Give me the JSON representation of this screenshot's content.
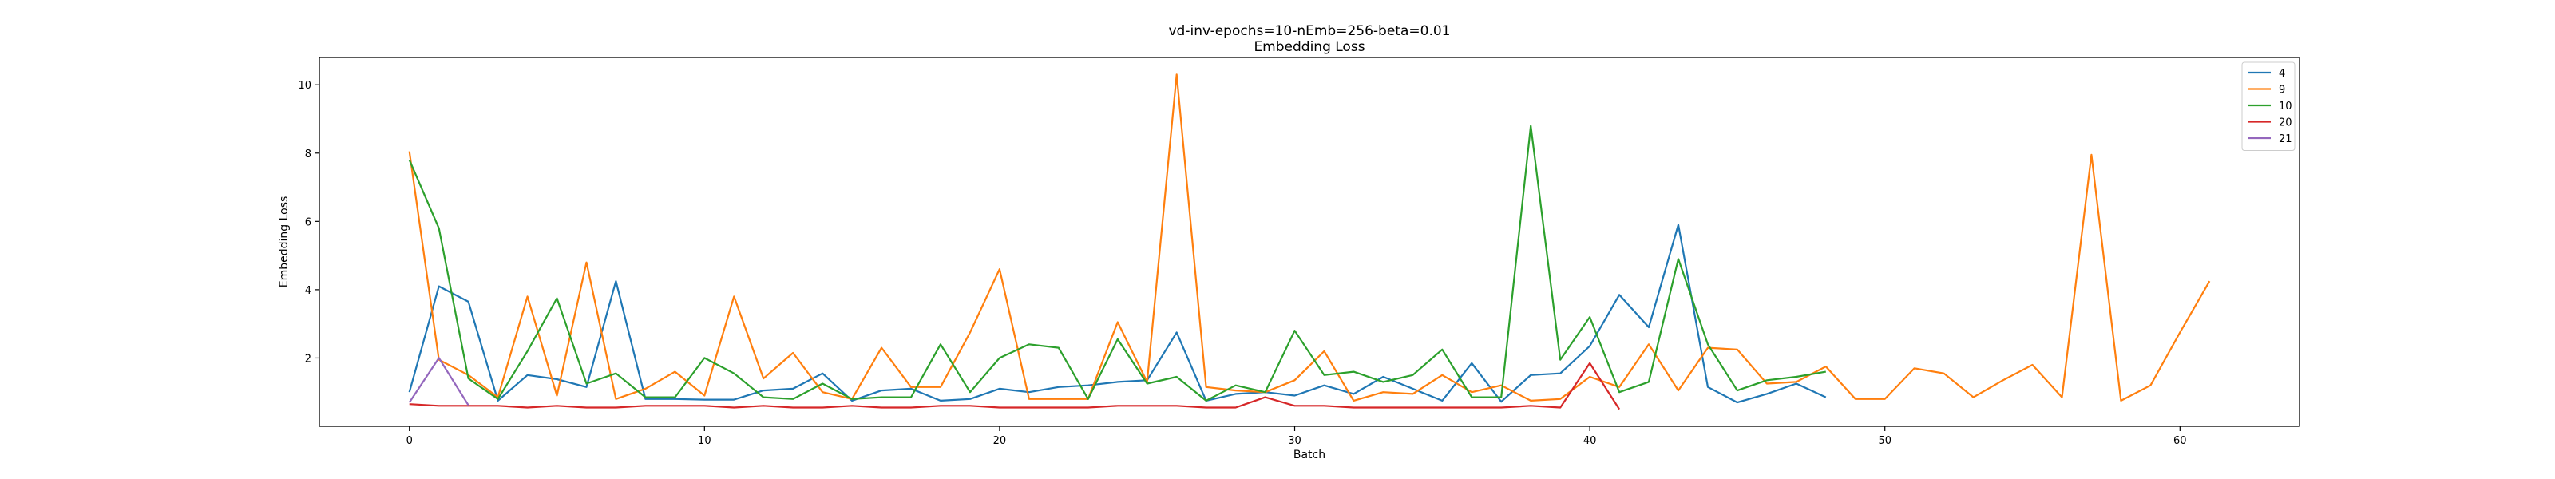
{
  "chart_data": {
    "type": "line",
    "title": "vd-inv-epochs=10-nEmb=256-beta=0.01",
    "subtitle": "Embedding Loss",
    "xlabel": "Batch",
    "ylabel": "Embedding Loss",
    "xlim": [
      -3.05,
      64.05
    ],
    "ylim": [
      0.0,
      10.8
    ],
    "xticks": [
      0,
      10,
      20,
      30,
      40,
      50,
      60
    ],
    "yticks": [
      2,
      4,
      6,
      8,
      10
    ],
    "grid": false,
    "legend_position": "top-right",
    "series": [
      {
        "name": "4",
        "color": "#1f77b4",
        "x": [
          0,
          1,
          2,
          3,
          4,
          5,
          6,
          7,
          8,
          9,
          10,
          11,
          12,
          13,
          14,
          15,
          16,
          17,
          18,
          19,
          20,
          21,
          22,
          23,
          24,
          25,
          26,
          27,
          28,
          29,
          30,
          31,
          32,
          33,
          34,
          35,
          36,
          37,
          38,
          39,
          40,
          41,
          42,
          43,
          44,
          45,
          46,
          47,
          48
        ],
        "values": [
          1.0,
          4.1,
          3.65,
          0.75,
          1.5,
          1.38,
          1.15,
          4.25,
          0.8,
          0.8,
          0.78,
          0.78,
          1.05,
          1.1,
          1.55,
          0.75,
          1.05,
          1.1,
          0.75,
          0.8,
          1.1,
          1.0,
          1.15,
          1.2,
          1.3,
          1.35,
          2.75,
          0.75,
          0.95,
          1.0,
          0.9,
          1.2,
          0.95,
          1.45,
          1.1,
          0.75,
          1.85,
          0.72,
          1.5,
          1.55,
          2.35,
          3.85,
          2.9,
          5.9,
          1.15,
          0.7,
          0.95,
          1.25,
          0.85
        ]
      },
      {
        "name": "9",
        "color": "#ff7f0e",
        "x": [
          0,
          1,
          2,
          3,
          4,
          5,
          6,
          7,
          8,
          9,
          10,
          11,
          12,
          13,
          14,
          15,
          16,
          17,
          18,
          19,
          20,
          21,
          22,
          23,
          24,
          25,
          26,
          27,
          28,
          29,
          30,
          31,
          32,
          33,
          34,
          35,
          36,
          37,
          38,
          39,
          40,
          41,
          42,
          43,
          44,
          45,
          46,
          47,
          48,
          49,
          50,
          51,
          52,
          53,
          54,
          55,
          56,
          57,
          58,
          59,
          60,
          61
        ],
        "values": [
          8.05,
          1.95,
          1.5,
          0.85,
          3.8,
          0.9,
          4.8,
          0.8,
          1.1,
          1.6,
          0.9,
          3.8,
          1.4,
          2.15,
          1.0,
          0.8,
          2.3,
          1.15,
          1.15,
          2.75,
          4.6,
          0.8,
          0.8,
          0.8,
          3.05,
          1.3,
          10.3,
          1.15,
          1.05,
          1.0,
          1.35,
          2.2,
          0.75,
          1.0,
          0.95,
          1.5,
          1.0,
          1.2,
          0.75,
          0.8,
          1.45,
          1.15,
          2.4,
          1.05,
          2.3,
          2.25,
          1.25,
          1.3,
          1.75,
          0.8,
          0.8,
          1.7,
          1.55,
          0.85,
          1.35,
          1.8,
          0.85,
          7.95,
          0.75,
          1.2,
          2.75,
          4.25
        ]
      },
      {
        "name": "10",
        "color": "#2ca02c",
        "x": [
          0,
          1,
          2,
          3,
          4,
          5,
          6,
          7,
          8,
          9,
          10,
          11,
          12,
          13,
          14,
          15,
          16,
          17,
          18,
          19,
          20,
          21,
          22,
          23,
          24,
          25,
          26,
          27,
          28,
          29,
          30,
          31,
          32,
          33,
          34,
          35,
          36,
          37,
          38,
          39,
          40,
          41,
          42,
          43,
          44,
          45,
          46,
          47,
          48
        ],
        "values": [
          7.8,
          5.8,
          1.4,
          0.8,
          2.2,
          3.75,
          1.25,
          1.55,
          0.85,
          0.85,
          2.0,
          1.55,
          0.85,
          0.8,
          1.25,
          0.8,
          0.85,
          0.85,
          2.4,
          1.0,
          2.0,
          2.4,
          2.3,
          0.8,
          2.55,
          1.25,
          1.45,
          0.75,
          1.2,
          1.0,
          2.8,
          1.5,
          1.6,
          1.3,
          1.5,
          2.25,
          0.85,
          0.85,
          8.8,
          1.95,
          3.2,
          1.0,
          1.3,
          4.9,
          2.4,
          1.05,
          1.35,
          1.45,
          1.6
        ]
      },
      {
        "name": "20",
        "color": "#d62728",
        "x": [
          0,
          1,
          2,
          3,
          4,
          5,
          6,
          7,
          8,
          9,
          10,
          11,
          12,
          13,
          14,
          15,
          16,
          17,
          18,
          19,
          20,
          21,
          22,
          23,
          24,
          25,
          26,
          27,
          28,
          29,
          30,
          31,
          32,
          33,
          34,
          35,
          36,
          37,
          38,
          39,
          40,
          41
        ],
        "values": [
          0.65,
          0.6,
          0.6,
          0.6,
          0.55,
          0.6,
          0.55,
          0.55,
          0.6,
          0.6,
          0.6,
          0.55,
          0.6,
          0.55,
          0.55,
          0.6,
          0.55,
          0.55,
          0.6,
          0.6,
          0.55,
          0.55,
          0.55,
          0.55,
          0.6,
          0.6,
          0.6,
          0.55,
          0.55,
          0.85,
          0.6,
          0.6,
          0.55,
          0.55,
          0.55,
          0.55,
          0.55,
          0.55,
          0.6,
          0.55,
          1.85,
          0.5
        ]
      },
      {
        "name": "21",
        "color": "#9467bd",
        "x": [
          0,
          1,
          2
        ],
        "values": [
          0.7,
          2.0,
          0.62
        ]
      }
    ]
  }
}
